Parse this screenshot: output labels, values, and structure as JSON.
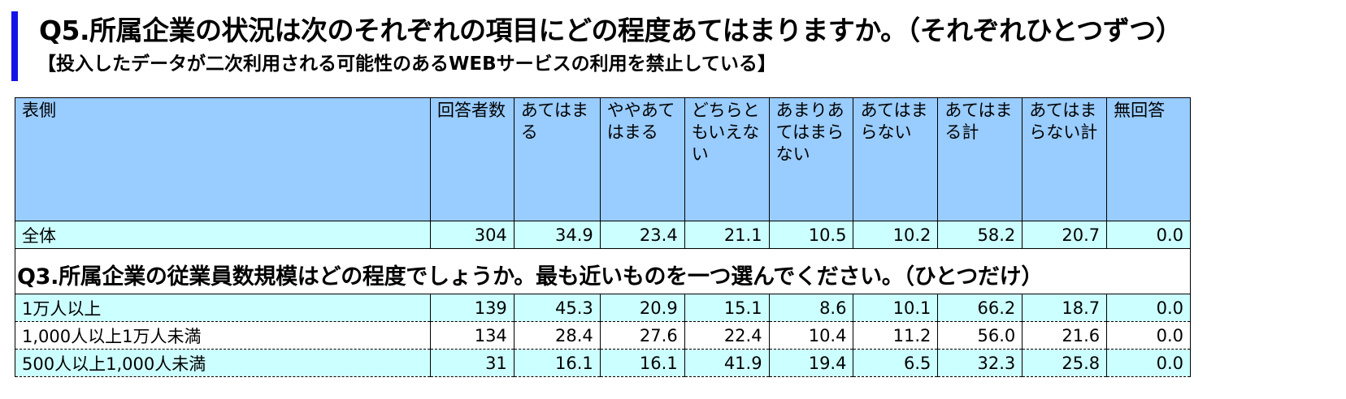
{
  "title": "Q5.所属企業の状況は次のそれぞれの項目にどの程度あてはまりますか。（それぞれひとつずつ）",
  "subtitle": "【投入したデータが二次利用される可能性のあるWEBサービスの利用を禁止している】",
  "accent_color": "#1414e6",
  "header_color": "#99ccff",
  "row_color": "#ccffff",
  "header": {
    "stub": "表側",
    "columns": [
      "回答者数",
      "あてはまる",
      "ややあてはまる",
      "どちらともいえない",
      "あまりあてはまらない",
      "あてはまらない",
      "あてはまる計",
      "あてはまらない計",
      "無回答"
    ]
  },
  "total": {
    "label": "全体",
    "values": [
      "304",
      "34.9",
      "23.4",
      "21.1",
      "10.5",
      "10.2",
      "58.2",
      "20.7",
      "0.0"
    ]
  },
  "section": {
    "title": "Q3.所属企業の従業員数規模はどの程度でしょうか。最も近いものを一つ選んでください。（ひとつだけ）",
    "rows": [
      {
        "label": "1万人以上",
        "values": [
          "139",
          "45.3",
          "20.9",
          "15.1",
          "8.6",
          "10.1",
          "66.2",
          "18.7",
          "0.0"
        ]
      },
      {
        "label": "1,000人以上1万人未満",
        "values": [
          "134",
          "28.4",
          "27.6",
          "22.4",
          "10.4",
          "11.2",
          "56.0",
          "21.6",
          "0.0"
        ]
      },
      {
        "label": "500人以上1,000人未満",
        "values": [
          "31",
          "16.1",
          "16.1",
          "41.9",
          "19.4",
          "6.5",
          "32.3",
          "25.8",
          "0.0"
        ]
      }
    ]
  }
}
